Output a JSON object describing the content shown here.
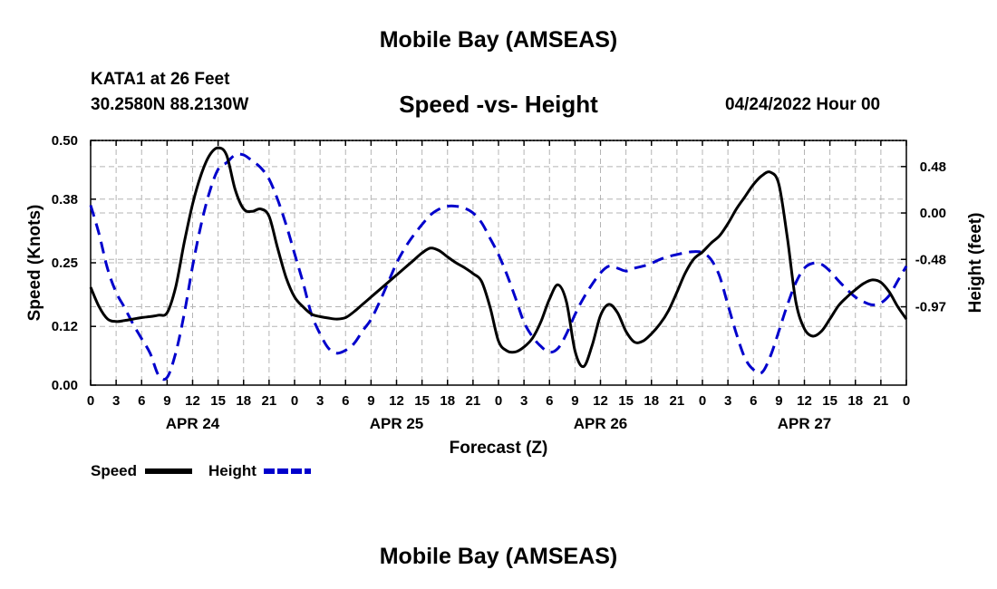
{
  "header": {
    "title": "Mobile Bay (AMSEAS)",
    "station": "KATA1 at 26 Feet",
    "coords": "30.2580N  88.2130W",
    "subtitle": "Speed -vs- Height",
    "datestamp": "04/24/2022 Hour 00",
    "footer_title": "Mobile Bay (AMSEAS)"
  },
  "chart_data": {
    "type": "line",
    "title": "Speed -vs- Height",
    "xlabel": "Forecast (Z)",
    "ylabel": "Speed (Knots)",
    "y2label": "Height (feet)",
    "xlim": [
      0,
      96
    ],
    "ylim": [
      0,
      0.5
    ],
    "y2lim": [
      -1.78,
      0.75
    ],
    "x_tick_labels": [
      "0",
      "3",
      "6",
      "9",
      "12",
      "15",
      "18",
      "21",
      "0",
      "3",
      "6",
      "9",
      "12",
      "15",
      "18",
      "21",
      "0",
      "3",
      "6",
      "9",
      "12",
      "15",
      "18",
      "21",
      "0",
      "3",
      "6",
      "9",
      "12",
      "15",
      "18",
      "21",
      "0"
    ],
    "date_labels": [
      {
        "label": "APR 24",
        "x": 12
      },
      {
        "label": "APR 25",
        "x": 36
      },
      {
        "label": "APR 26",
        "x": 60
      },
      {
        "label": "APR 27",
        "x": 84
      }
    ],
    "y_ticks": [
      "0.00",
      "0.12",
      "0.25",
      "0.38",
      "0.50"
    ],
    "y2_ticks": [
      "-0.97",
      "-0.48",
      "0.00",
      "0.48"
    ],
    "legend": [
      {
        "name": "Speed",
        "color": "#000000",
        "dash": "solid"
      },
      {
        "name": "Height",
        "color": "#0000cc",
        "dash": "dashed"
      }
    ],
    "series": [
      {
        "name": "Speed",
        "axis": "left",
        "color": "#000000",
        "x": [
          0,
          1,
          2,
          3,
          4,
          5,
          6,
          7,
          8,
          9,
          10,
          11,
          12,
          13,
          14,
          15,
          16,
          17,
          18,
          19,
          20,
          21,
          22,
          23,
          24,
          25,
          26,
          27,
          28,
          29,
          30,
          31,
          32,
          33,
          34,
          35,
          36,
          37,
          38,
          39,
          40,
          41,
          42,
          43,
          44,
          45,
          46,
          47,
          48,
          49,
          50,
          51,
          52,
          53,
          54,
          55,
          56,
          57,
          58,
          59,
          60,
          61,
          62,
          63,
          64,
          65,
          66,
          67,
          68,
          69,
          70,
          71,
          72,
          73,
          74,
          75,
          76,
          77,
          78,
          79,
          80,
          81,
          82,
          83,
          84,
          85,
          86,
          87,
          88,
          89,
          90,
          91,
          92,
          93,
          94,
          95,
          96
        ],
        "values": [
          0.2,
          0.16,
          0.135,
          0.13,
          0.132,
          0.135,
          0.138,
          0.14,
          0.143,
          0.148,
          0.2,
          0.29,
          0.37,
          0.43,
          0.47,
          0.485,
          0.47,
          0.4,
          0.36,
          0.355,
          0.36,
          0.345,
          0.28,
          0.22,
          0.18,
          0.16,
          0.145,
          0.14,
          0.137,
          0.135,
          0.138,
          0.15,
          0.165,
          0.18,
          0.195,
          0.21,
          0.225,
          0.24,
          0.255,
          0.27,
          0.28,
          0.275,
          0.262,
          0.25,
          0.24,
          0.228,
          0.212,
          0.16,
          0.09,
          0.07,
          0.068,
          0.078,
          0.096,
          0.13,
          0.176,
          0.205,
          0.17,
          0.07,
          0.038,
          0.08,
          0.142,
          0.165,
          0.148,
          0.11,
          0.088,
          0.09,
          0.105,
          0.125,
          0.152,
          0.19,
          0.23,
          0.258,
          0.272,
          0.29,
          0.305,
          0.33,
          0.36,
          0.385,
          0.41,
          0.428,
          0.435,
          0.41,
          0.3,
          0.17,
          0.115,
          0.1,
          0.11,
          0.135,
          0.162,
          0.18,
          0.195,
          0.208,
          0.215,
          0.21,
          0.19,
          0.16,
          0.135
        ]
      },
      {
        "name": "Height",
        "axis": "right",
        "color": "#0000cc",
        "x": [
          0,
          1,
          2,
          3,
          4,
          5,
          6,
          7,
          8,
          9,
          10,
          11,
          12,
          13,
          14,
          15,
          16,
          17,
          18,
          19,
          20,
          21,
          22,
          23,
          24,
          25,
          26,
          27,
          28,
          29,
          30,
          31,
          32,
          33,
          34,
          35,
          36,
          37,
          38,
          39,
          40,
          41,
          42,
          43,
          44,
          45,
          46,
          47,
          48,
          49,
          50,
          51,
          52,
          53,
          54,
          55,
          56,
          57,
          58,
          59,
          60,
          61,
          62,
          63,
          64,
          65,
          66,
          67,
          68,
          69,
          70,
          71,
          72,
          73,
          74,
          75,
          76,
          77,
          78,
          79,
          80,
          81,
          82,
          83,
          84,
          85,
          86,
          87,
          88,
          89,
          90,
          91,
          92,
          93,
          94,
          95,
          96
        ],
        "values": [
          0.08,
          -0.22,
          -0.58,
          -0.82,
          -0.98,
          -1.15,
          -1.3,
          -1.45,
          -1.68,
          -1.7,
          -1.45,
          -1.05,
          -0.55,
          -0.12,
          0.22,
          0.45,
          0.52,
          0.6,
          0.6,
          0.54,
          0.47,
          0.35,
          0.14,
          -0.12,
          -0.42,
          -0.72,
          -1.05,
          -1.25,
          -1.4,
          -1.45,
          -1.42,
          -1.35,
          -1.22,
          -1.1,
          -0.92,
          -0.72,
          -0.52,
          -0.36,
          -0.23,
          -0.12,
          -0.02,
          0.04,
          0.07,
          0.07,
          0.05,
          0.0,
          -0.1,
          -0.26,
          -0.43,
          -0.64,
          -0.88,
          -1.13,
          -1.28,
          -1.38,
          -1.44,
          -1.4,
          -1.25,
          -1.05,
          -0.88,
          -0.74,
          -0.62,
          -0.55,
          -0.57,
          -0.6,
          -0.57,
          -0.55,
          -0.52,
          -0.48,
          -0.45,
          -0.43,
          -0.41,
          -0.4,
          -0.41,
          -0.48,
          -0.65,
          -0.95,
          -1.25,
          -1.5,
          -1.62,
          -1.65,
          -1.48,
          -1.22,
          -0.95,
          -0.72,
          -0.57,
          -0.52,
          -0.53,
          -0.6,
          -0.7,
          -0.79,
          -0.87,
          -0.92,
          -0.95,
          -0.93,
          -0.85,
          -0.7,
          -0.55
        ]
      }
    ]
  }
}
